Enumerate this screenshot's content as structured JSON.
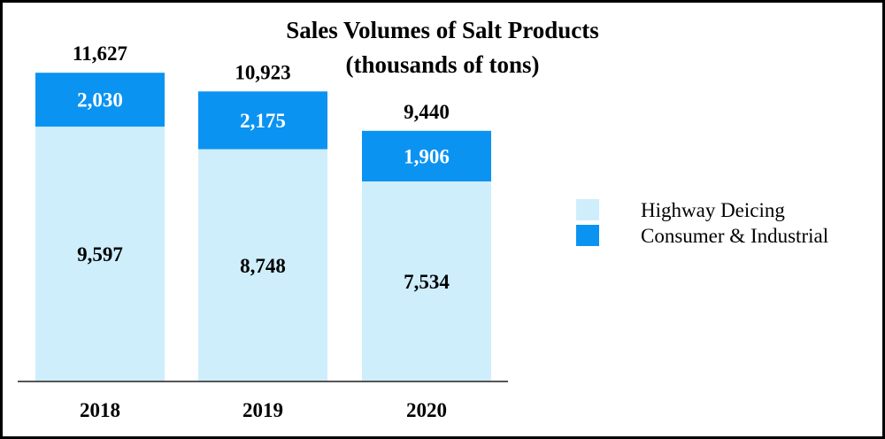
{
  "chart_data": {
    "type": "bar",
    "stacked": true,
    "title": "Sales Volumes of Salt Products",
    "subtitle": "(thousands of tons)",
    "categories": [
      "2018",
      "2019",
      "2020"
    ],
    "series": [
      {
        "name": "Highway Deicing",
        "values": [
          9597,
          8748,
          7534
        ],
        "color": "#cfeefc",
        "labels": [
          "9,597",
          "8,748",
          "7,534"
        ]
      },
      {
        "name": "Consumer & Industrial",
        "values": [
          2030,
          2175,
          1906
        ],
        "color": "#0b93f2",
        "labels": [
          "2,030",
          "2,175",
          "1,906"
        ]
      }
    ],
    "totals": [
      11627,
      10923,
      9440
    ],
    "total_labels": [
      "11,627",
      "10,923",
      "9,440"
    ],
    "xlabel": "",
    "ylabel": "",
    "ylim": [
      0,
      12000
    ],
    "grid": false,
    "legend_position": "right"
  }
}
